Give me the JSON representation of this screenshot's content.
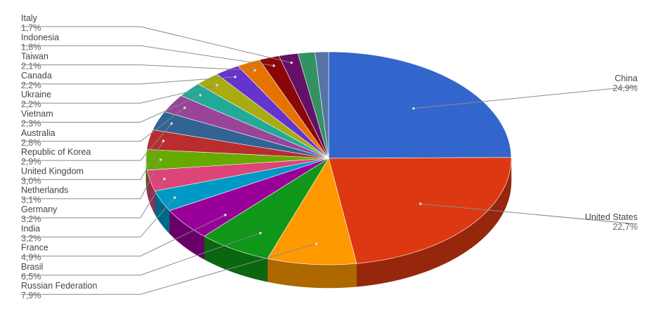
{
  "chart_data": {
    "type": "pie",
    "style": "3d",
    "title": "",
    "series": [
      {
        "name": "China",
        "label": "24,9%",
        "value": 24.9,
        "color": "#3366cc"
      },
      {
        "name": "United States",
        "label": "22,7%",
        "value": 22.7,
        "color": "#dc3912"
      },
      {
        "name": "Russian Federation",
        "label": "7,9%",
        "value": 7.9,
        "color": "#ff9900"
      },
      {
        "name": "Brasil",
        "label": "6,5%",
        "value": 6.5,
        "color": "#109618"
      },
      {
        "name": "France",
        "label": "4,9%",
        "value": 4.9,
        "color": "#990099"
      },
      {
        "name": "India",
        "label": "3,2%",
        "value": 3.2,
        "color": "#0099c6"
      },
      {
        "name": "Germany",
        "label": "3,2%",
        "value": 3.2,
        "color": "#dd4477"
      },
      {
        "name": "Netherlands",
        "label": "3,1%",
        "value": 3.1,
        "color": "#66aa00"
      },
      {
        "name": "United Kingdom",
        "label": "3,0%",
        "value": 3.0,
        "color": "#b82e2e"
      },
      {
        "name": "Republic of Korea",
        "label": "2,9%",
        "value": 2.9,
        "color": "#316395"
      },
      {
        "name": "Australia",
        "label": "2,8%",
        "value": 2.8,
        "color": "#994499"
      },
      {
        "name": "Vietnam",
        "label": "2,3%",
        "value": 2.3,
        "color": "#22aa99"
      },
      {
        "name": "Ukraine",
        "label": "2,2%",
        "value": 2.2,
        "color": "#aaaa11"
      },
      {
        "name": "Canada",
        "label": "2,2%",
        "value": 2.2,
        "color": "#6633cc"
      },
      {
        "name": "Taiwan",
        "label": "2,1%",
        "value": 2.1,
        "color": "#e67300"
      },
      {
        "name": "Indonesia",
        "label": "1,8%",
        "value": 1.8,
        "color": "#8b0707"
      },
      {
        "name": "Italy",
        "label": "1,7%",
        "value": 1.7,
        "color": "#651067"
      },
      {
        "name": "",
        "label": "",
        "value": 1.5,
        "color": "#329262"
      },
      {
        "name": "",
        "label": "",
        "value": 1.2,
        "color": "#5574a6"
      }
    ],
    "legend": "labels with leader lines"
  }
}
